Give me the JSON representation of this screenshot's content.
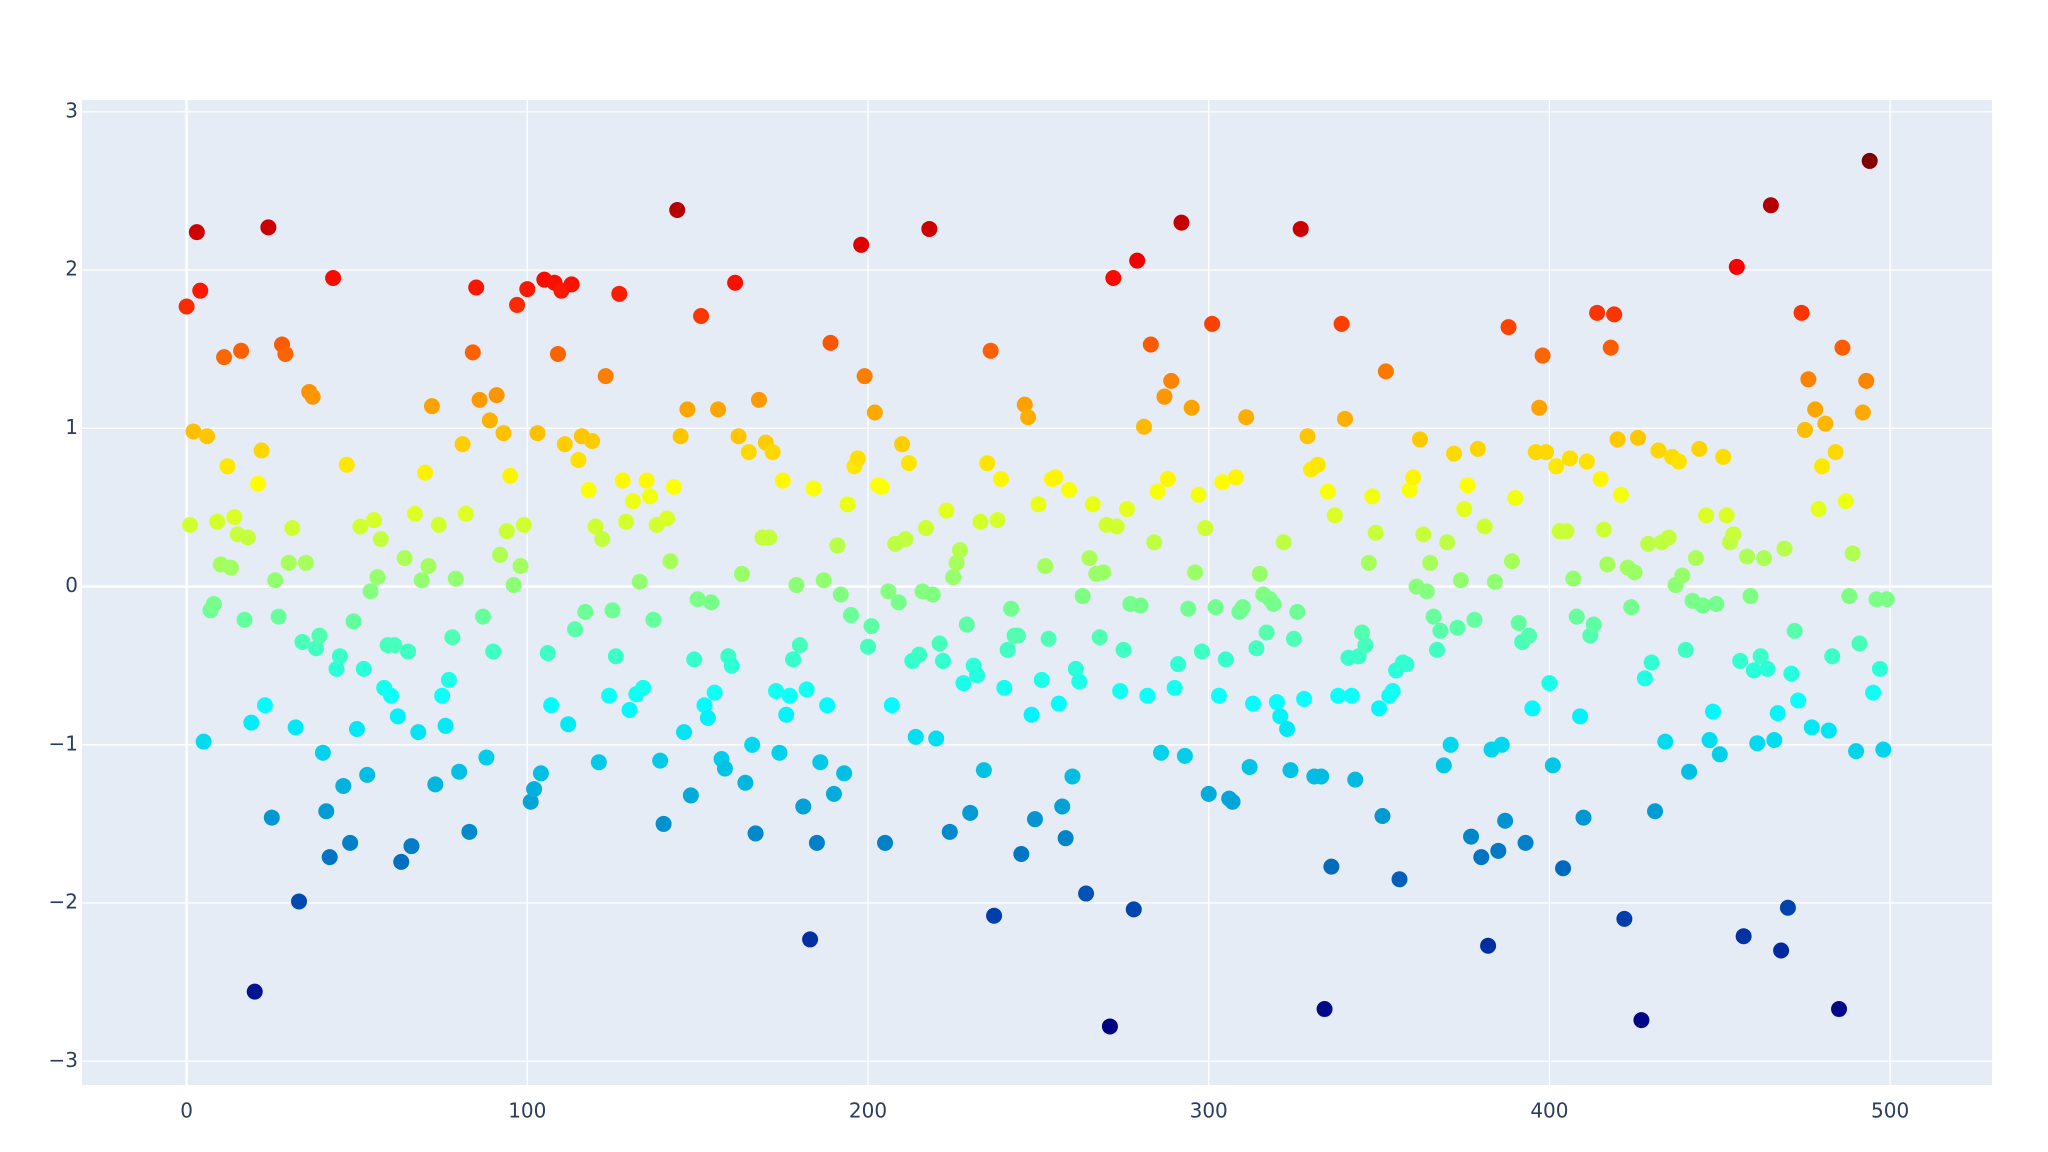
{
  "chart_data": {
    "type": "scatter",
    "x": [
      0,
      1,
      2,
      3,
      4,
      5,
      6,
      7,
      8,
      9,
      10,
      11,
      12,
      13,
      14,
      15,
      16,
      17,
      18,
      19,
      20,
      21,
      22,
      23,
      24,
      25,
      26,
      27,
      28,
      29,
      30,
      31,
      32,
      33,
      34,
      35,
      36,
      37,
      38,
      39,
      40,
      41,
      42,
      43,
      44,
      45,
      46,
      47,
      48,
      49,
      50,
      51,
      52,
      53,
      54,
      55,
      56,
      57,
      58,
      59,
      60,
      61,
      62,
      63,
      64,
      65,
      66,
      67,
      68,
      69,
      70,
      71,
      72,
      73,
      74,
      75,
      76,
      77,
      78,
      79,
      80,
      81,
      82,
      83,
      84,
      85,
      86,
      87,
      88,
      89,
      90,
      91,
      92,
      93,
      94,
      95,
      96,
      97,
      98,
      99,
      100,
      101,
      102,
      103,
      104,
      105,
      106,
      107,
      108,
      109,
      110,
      111,
      112,
      113,
      114,
      115,
      116,
      117,
      118,
      119,
      120,
      121,
      122,
      123,
      124,
      125,
      126,
      127,
      128,
      129,
      130,
      131,
      132,
      133,
      134,
      135,
      136,
      137,
      138,
      139,
      140,
      141,
      142,
      143,
      144,
      145,
      146,
      147,
      148,
      149,
      150,
      151,
      152,
      153,
      154,
      155,
      156,
      157,
      158,
      159,
      160,
      161,
      162,
      163,
      164,
      165,
      166,
      167,
      168,
      169,
      170,
      171,
      172,
      173,
      174,
      175,
      176,
      177,
      178,
      179,
      180,
      181,
      182,
      183,
      184,
      185,
      186,
      187,
      188,
      189,
      190,
      191,
      192,
      193,
      194,
      195,
      196,
      197,
      198,
      199,
      200,
      201,
      202,
      203,
      204,
      205,
      206,
      207,
      208,
      209,
      210,
      211,
      212,
      213,
      214,
      215,
      216,
      217,
      218,
      219,
      220,
      221,
      222,
      223,
      224,
      225,
      226,
      227,
      228,
      229,
      230,
      231,
      232,
      233,
      234,
      235,
      236,
      237,
      238,
      239,
      240,
      241,
      242,
      243,
      244,
      245,
      246,
      247,
      248,
      249,
      250,
      251,
      252,
      253,
      254,
      255,
      256,
      257,
      258,
      259,
      260,
      261,
      262,
      263,
      264,
      265,
      266,
      267,
      268,
      269,
      270,
      271,
      272,
      273,
      274,
      275,
      276,
      277,
      278,
      279,
      280,
      281,
      282,
      283,
      284,
      285,
      286,
      287,
      288,
      289,
      290,
      291,
      292,
      293,
      294,
      295,
      296,
      297,
      298,
      299,
      300,
      301,
      302,
      303,
      304,
      305,
      306,
      307,
      308,
      309,
      310,
      311,
      312,
      313,
      314,
      315,
      316,
      317,
      318,
      319,
      320,
      321,
      322,
      323,
      324,
      325,
      326,
      327,
      328,
      329,
      330,
      331,
      332,
      333,
      334,
      335,
      336,
      337,
      338,
      339,
      340,
      341,
      342,
      343,
      344,
      345,
      346,
      347,
      348,
      349,
      350,
      351,
      352,
      353,
      354,
      355,
      356,
      357,
      358,
      359,
      360,
      361,
      362,
      363,
      364,
      365,
      366,
      367,
      368,
      369,
      370,
      371,
      372,
      373,
      374,
      375,
      376,
      377,
      378,
      379,
      380,
      381,
      382,
      383,
      384,
      385,
      386,
      387,
      388,
      389,
      390,
      391,
      392,
      393,
      394,
      395,
      396,
      397,
      398,
      399,
      400,
      401,
      402,
      403,
      404,
      405,
      406,
      407,
      408,
      409,
      410,
      411,
      412,
      413,
      414,
      415,
      416,
      417,
      418,
      419,
      420,
      421,
      422,
      423,
      424,
      425,
      426,
      427,
      428,
      429,
      430,
      431,
      432,
      433,
      434,
      435,
      436,
      437,
      438,
      439,
      440,
      441,
      442,
      443,
      444,
      445,
      446,
      447,
      448,
      449,
      450,
      451,
      452,
      453,
      454,
      455,
      456,
      457,
      458,
      459,
      460,
      461,
      462,
      463,
      464,
      465,
      466,
      467,
      468,
      469,
      470,
      471,
      472,
      473,
      474,
      475,
      476,
      477,
      478,
      479,
      480,
      481,
      482,
      483,
      484,
      485,
      486,
      487,
      488,
      489,
      490,
      491,
      492,
      493,
      494,
      495,
      496,
      497,
      498,
      499
    ],
    "values": [
      1.77,
      0.39,
      0.98,
      2.24,
      1.87,
      -0.98,
      0.95,
      -0.15,
      -0.11,
      0.41,
      0.14,
      1.45,
      0.76,
      0.12,
      0.44,
      0.33,
      1.49,
      -0.21,
      0.31,
      -0.86,
      -2.56,
      0.65,
      0.86,
      -0.75,
      2.27,
      -1.46,
      0.04,
      -0.19,
      1.53,
      1.47,
      0.15,
      0.37,
      -0.89,
      -1.99,
      -0.35,
      0.15,
      1.23,
      1.2,
      -0.39,
      -0.31,
      -1.05,
      -1.42,
      -1.71,
      1.95,
      -0.52,
      -0.44,
      -1.26,
      0.77,
      -1.62,
      -0.22,
      -0.9,
      0.38,
      -0.52,
      -1.19,
      -0.03,
      0.42,
      0.06,
      0.3,
      -0.64,
      -0.37,
      -0.69,
      -0.37,
      -0.82,
      -1.74,
      0.18,
      -0.41,
      -1.64,
      0.46,
      -0.92,
      0.04,
      0.72,
      0.13,
      1.14,
      -1.25,
      0.39,
      -0.69,
      -0.88,
      -0.59,
      -0.32,
      0.05,
      -1.17,
      0.9,
      0.46,
      -1.55,
      1.48,
      1.89,
      1.18,
      -0.19,
      -1.08,
      1.05,
      -0.41,
      1.21,
      0.2,
      0.97,
      0.35,
      0.7,
      0.01,
      1.78,
      0.13,
      0.39,
      1.88,
      -1.36,
      -1.28,
      0.97,
      -1.18,
      1.94,
      -0.42,
      -0.75,
      1.92,
      1.47,
      1.87,
      0.9,
      -0.87,
      1.91,
      -0.27,
      0.8,
      0.95,
      -0.16,
      0.61,
      0.92,
      0.38,
      -1.11,
      0.3,
      1.33,
      -0.69,
      -0.15,
      -0.44,
      1.85,
      0.67,
      0.41,
      -0.78,
      0.54,
      -0.68,
      0.03,
      -0.64,
      0.67,
      0.57,
      -0.21,
      0.39,
      -1.1,
      -1.5,
      0.43,
      0.16,
      0.63,
      2.38,
      0.95,
      -0.92,
      1.12,
      -1.32,
      -0.46,
      -0.08,
      1.71,
      -0.75,
      -0.83,
      -0.1,
      -0.67,
      1.12,
      -1.09,
      -1.15,
      -0.44,
      -0.5,
      1.92,
      0.95,
      0.08,
      -1.24,
      0.85,
      -1.0,
      -1.56,
      1.18,
      0.31,
      0.91,
      0.31,
      0.85,
      -0.66,
      -1.05,
      0.67,
      -0.81,
      -0.69,
      -0.46,
      0.01,
      -0.37,
      -1.39,
      -0.65,
      -2.23,
      0.62,
      -1.62,
      -1.11,
      0.04,
      -0.75,
      1.54,
      -1.31,
      0.26,
      -0.05,
      -1.18,
      0.52,
      -0.18,
      0.76,
      0.81,
      2.16,
      1.33,
      -0.38,
      -0.25,
      1.1,
      0.64,
      0.63,
      -1.62,
      -0.03,
      -0.75,
      0.27,
      -0.1,
      0.9,
      0.3,
      0.78,
      -0.47,
      -0.95,
      -0.43,
      -0.03,
      0.37,
      2.26,
      -0.05,
      -0.96,
      -0.36,
      -0.47,
      0.48,
      -1.55,
      0.06,
      0.15,
      0.23,
      -0.61,
      -0.24,
      -1.43,
      -0.5,
      -0.56,
      0.41,
      -1.16,
      0.78,
      1.49,
      -2.08,
      0.42,
      0.68,
      -0.64,
      -0.4,
      -0.14,
      -0.31,
      -0.31,
      -1.69,
      1.15,
      1.07,
      -0.81,
      -1.47,
      0.52,
      -0.59,
      0.13,
      -0.33,
      0.68,
      0.69,
      -0.74,
      -1.39,
      -1.59,
      0.61,
      -1.2,
      -0.52,
      -0.6,
      -0.06,
      -1.94,
      0.18,
      0.52,
      0.08,
      -0.32,
      0.09,
      0.39,
      -2.78,
      1.95,
      0.38,
      -0.66,
      -0.4,
      0.49,
      -0.11,
      -2.04,
      2.06,
      -0.12,
      1.01,
      -0.69,
      1.53,
      0.28,
      0.6,
      -1.05,
      1.2,
      0.68,
      1.3,
      -0.64,
      -0.49,
      2.3,
      -1.07,
      -0.14,
      1.13,
      0.09,
      0.58,
      -0.41,
      0.37,
      -1.31,
      1.66,
      -0.13,
      -0.69,
      0.66,
      -0.46,
      -1.34,
      -1.36,
      0.69,
      -0.16,
      -0.13,
      1.07,
      -1.14,
      -0.74,
      -0.39,
      0.08,
      -0.05,
      -0.29,
      -0.08,
      -0.11,
      -0.73,
      -0.82,
      0.28,
      -0.9,
      -1.16,
      -0.33,
      -0.16,
      2.26,
      -0.71,
      0.95,
      0.74,
      -1.2,
      0.77,
      -1.2,
      -2.67,
      0.6,
      -1.77,
      0.45,
      -0.69,
      1.66,
      1.06,
      -0.45,
      -0.69,
      -1.22,
      -0.44,
      -0.29,
      -0.37,
      0.15,
      0.57,
      0.34,
      -0.77,
      -1.45,
      1.36,
      -0.69,
      -0.66,
      -0.53,
      -1.85,
      -0.48,
      -0.49,
      0.61,
      0.69,
      0.0,
      0.93,
      0.33,
      -0.03,
      0.15,
      -0.19,
      -0.4,
      -0.28,
      -1.13,
      0.28,
      -1.0,
      0.84,
      -0.26,
      0.04,
      0.49,
      0.64,
      -1.58,
      -0.21,
      0.87,
      -1.71,
      0.38,
      -2.27,
      -1.03,
      0.03,
      -1.67,
      -1.0,
      -1.48,
      1.64,
      0.16,
      0.56,
      -0.23,
      -0.35,
      -1.62,
      -0.31,
      -0.77,
      0.85,
      1.13,
      1.46,
      0.85,
      -0.61,
      -1.13,
      0.76,
      0.35,
      -1.78,
      0.35,
      0.81,
      0.05,
      -0.19,
      -0.82,
      -1.46,
      0.79,
      -0.31,
      -0.24,
      1.73,
      0.68,
      0.36,
      0.14,
      1.51,
      1.72,
      0.93,
      0.58,
      -2.1,
      0.12,
      -0.13,
      0.09,
      0.94,
      -2.74,
      -0.58,
      0.27,
      -0.48,
      -1.42,
      0.86,
      0.28,
      -0.98,
      0.31,
      0.82,
      0.01,
      0.79,
      0.07,
      -0.4,
      -1.17,
      -0.09,
      0.18,
      0.87,
      -0.12,
      0.45,
      -0.97,
      -0.79,
      -0.11,
      -1.06,
      0.82,
      0.45,
      0.28,
      0.33,
      2.02,
      -0.47,
      -2.21,
      0.19,
      -0.06,
      -0.53,
      -0.99,
      -0.44,
      0.18,
      -0.52,
      2.41,
      -0.97,
      -0.8,
      -2.3,
      0.24,
      -2.03,
      -0.55,
      -0.28,
      -0.72,
      1.73,
      0.99,
      1.31,
      -0.89,
      1.12,
      0.49,
      0.76,
      1.03,
      -0.91,
      -0.44,
      0.85,
      -2.67,
      1.51,
      0.54,
      -0.06,
      0.21,
      -1.04,
      -0.36,
      1.1,
      1.3,
      2.69,
      -0.67,
      -0.08,
      -0.52,
      -1.03,
      -0.08
    ],
    "colorscale": [
      [
        0,
        "#000083"
      ],
      [
        0.125,
        "#003caa"
      ],
      [
        0.375,
        "#05ffff"
      ],
      [
        0.625,
        "#ffff00"
      ],
      [
        0.875,
        "#fa0000"
      ],
      [
        1,
        "#800000"
      ]
    ],
    "xlim": [
      -30.7,
      529.9
    ],
    "xticks": [
      0,
      100,
      200,
      300,
      400,
      500
    ],
    "ylim": [
      -3.15,
      3.075
    ],
    "yticks": [
      {
        "value": -3,
        "label": "−3"
      },
      {
        "value": -2,
        "label": "−2"
      },
      {
        "value": -1,
        "label": "−1"
      },
      0,
      1,
      2,
      3
    ],
    "grid": true
  }
}
